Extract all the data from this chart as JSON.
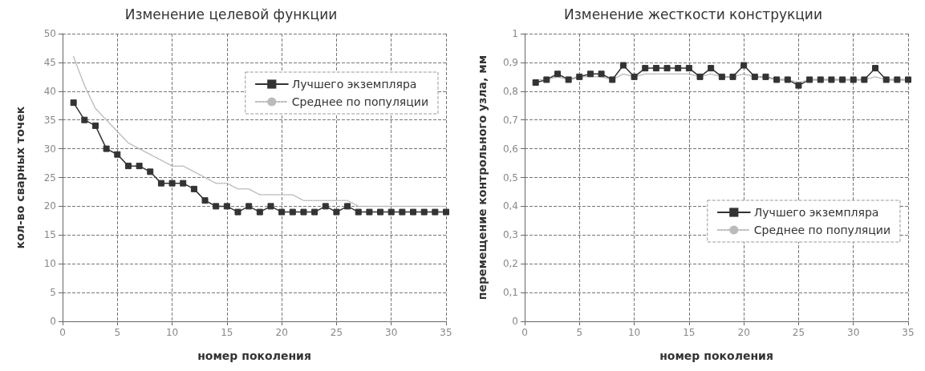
{
  "chart_data": [
    {
      "type": "line",
      "title": "Изменение целевой функции",
      "xlabel": "номер поколения",
      "ylabel": "кол-во сварных точек",
      "x": [
        1,
        2,
        3,
        4,
        5,
        6,
        7,
        8,
        9,
        10,
        11,
        12,
        13,
        14,
        15,
        16,
        17,
        18,
        19,
        20,
        21,
        22,
        23,
        24,
        25,
        26,
        27,
        28,
        29,
        30,
        31,
        32,
        33,
        34,
        35
      ],
      "series": [
        {
          "name": "Лучшего экземпляра",
          "color": "#333333",
          "marker": "square",
          "line_style": "solid",
          "values": [
            38,
            35,
            34,
            30,
            29,
            27,
            27,
            26,
            24,
            24,
            24,
            23,
            21,
            20,
            20,
            19,
            20,
            19,
            20,
            19,
            19,
            19,
            19,
            20,
            19,
            20,
            19,
            19,
            19,
            19,
            19,
            19,
            19,
            19,
            19
          ]
        },
        {
          "name": "Среднее по популяции",
          "color": "#bbbbbb",
          "marker": "none",
          "line_style": "dotted",
          "values": [
            46,
            41,
            37,
            35,
            33,
            31,
            30,
            29,
            28,
            27,
            27,
            26,
            25,
            24,
            24,
            23,
            23,
            22,
            22,
            22,
            22,
            21,
            21,
            21,
            21,
            21,
            20,
            20,
            20,
            20,
            20,
            20,
            20,
            20,
            20
          ]
        }
      ],
      "xlim": [
        0,
        35
      ],
      "xticks": [
        0,
        5,
        10,
        15,
        20,
        25,
        30,
        35
      ],
      "ylim": [
        0,
        50
      ],
      "yticks": [
        0,
        5,
        10,
        15,
        20,
        25,
        30,
        35,
        40,
        45,
        50
      ],
      "grid": true,
      "legend": "top right"
    },
    {
      "type": "line",
      "title": "Изменение жесткости конструкции",
      "xlabel": "номер поколения",
      "ylabel": "перемещение контрольного узла, мм",
      "x": [
        1,
        2,
        3,
        4,
        5,
        6,
        7,
        8,
        9,
        10,
        11,
        12,
        13,
        14,
        15,
        16,
        17,
        18,
        19,
        20,
        21,
        22,
        23,
        24,
        25,
        26,
        27,
        28,
        29,
        30,
        31,
        32,
        33,
        34,
        35
      ],
      "series": [
        {
          "name": "Лучшего экземпляра",
          "color": "#333333",
          "marker": "square",
          "line_style": "solid",
          "values": [
            0.83,
            0.84,
            0.86,
            0.84,
            0.85,
            0.86,
            0.86,
            0.84,
            0.89,
            0.85,
            0.88,
            0.88,
            0.88,
            0.88,
            0.88,
            0.85,
            0.88,
            0.85,
            0.85,
            0.89,
            0.85,
            0.85,
            0.84,
            0.84,
            0.82,
            0.84,
            0.84,
            0.84,
            0.84,
            0.84,
            0.84,
            0.88,
            0.84,
            0.84,
            0.84
          ]
        },
        {
          "name": "Среднее по популяции",
          "color": "#bbbbbb",
          "marker": "none",
          "line_style": "dotted",
          "values": [
            0.84,
            0.84,
            0.85,
            0.84,
            0.85,
            0.85,
            0.85,
            0.84,
            0.86,
            0.85,
            0.86,
            0.86,
            0.86,
            0.86,
            0.86,
            0.85,
            0.86,
            0.85,
            0.85,
            0.86,
            0.85,
            0.85,
            0.84,
            0.84,
            0.83,
            0.84,
            0.84,
            0.84,
            0.84,
            0.84,
            0.84,
            0.85,
            0.84,
            0.84,
            0.84
          ]
        }
      ],
      "xlim": [
        0,
        35
      ],
      "xticks": [
        0,
        5,
        10,
        15,
        20,
        25,
        30,
        35
      ],
      "ylim": [
        0,
        1
      ],
      "yticks": [
        0,
        {
          "value": 0.1,
          "label": "0,1"
        },
        {
          "value": 0.2,
          "label": "0,2"
        },
        {
          "value": 0.3,
          "label": "0,3"
        },
        {
          "value": 0.4,
          "label": "0,4"
        },
        {
          "value": 0.5,
          "label": "0,5"
        },
        {
          "value": 0.6,
          "label": "0,6"
        },
        {
          "value": 0.7,
          "label": "0,7"
        },
        {
          "value": 0.8,
          "label": "0,8"
        },
        {
          "value": 0.9,
          "label": "0,9"
        },
        1
      ],
      "grid": true,
      "legend": "right"
    }
  ]
}
